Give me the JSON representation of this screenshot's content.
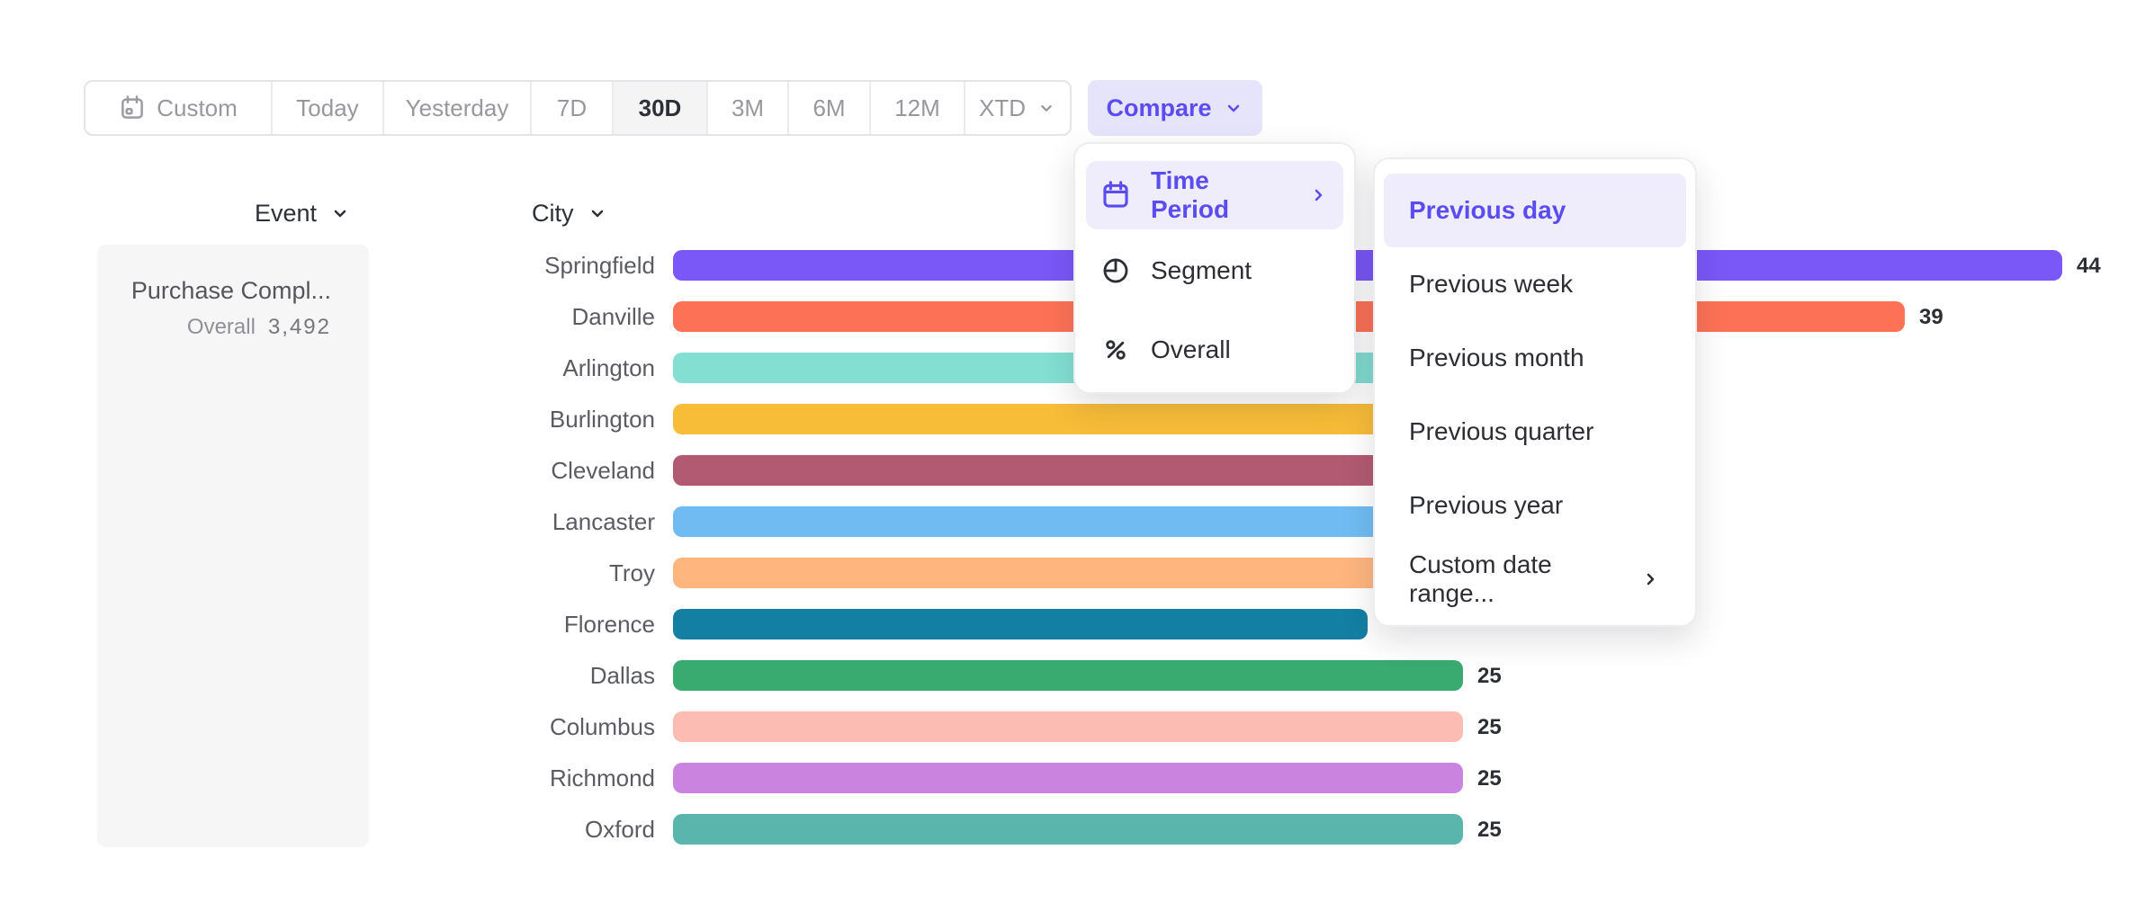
{
  "toolbar": {
    "buttons": [
      {
        "label": "Custom",
        "icon": "calendar-icon",
        "selected": false
      },
      {
        "label": "Today",
        "selected": false
      },
      {
        "label": "Yesterday",
        "selected": false
      },
      {
        "label": "7D",
        "selected": false
      },
      {
        "label": "30D",
        "selected": true
      },
      {
        "label": "3M",
        "selected": false
      },
      {
        "label": "6M",
        "selected": false
      },
      {
        "label": "12M",
        "selected": false
      },
      {
        "label": "XTD",
        "chevron": true,
        "selected": false
      }
    ],
    "compare_label": "Compare"
  },
  "columns": {
    "event_label": "Event",
    "city_label": "City"
  },
  "event_panel": {
    "name": "Purchase Compl...",
    "overall_label": "Overall",
    "overall_value": "3,492"
  },
  "chart_data": {
    "type": "bar",
    "orientation": "horizontal",
    "group_by": "City",
    "xlim": [
      0,
      44
    ],
    "categories": [
      "Springfield",
      "Danville",
      "Arlington",
      "Burlington",
      "Cleveland",
      "Lancaster",
      "Troy",
      "Florence",
      "Dallas",
      "Columbus",
      "Richmond",
      "Oxford"
    ],
    "values": [
      44,
      39,
      30,
      30,
      29,
      28,
      27,
      22,
      25,
      25,
      25,
      25
    ],
    "value_labels": [
      "44",
      "39",
      "",
      "",
      "",
      "",
      "",
      "",
      "25",
      "25",
      "25",
      "25"
    ],
    "bar_colors": [
      "#7a57f7",
      "#fd7256",
      "#83dfd2",
      "#f7bc38",
      "#b25a72",
      "#70bcf2",
      "#feb57e",
      "#137fa3",
      "#39aa70",
      "#fcbcb4",
      "#ca84e0",
      "#5ab6ad"
    ],
    "note_visible_labels_only": "bars 3-8 end underneath the open dropdown menus"
  },
  "compare_menu": {
    "items": [
      {
        "label": "Time Period",
        "icon": "calendar-lines-icon",
        "highlighted": true,
        "has_submenu": true
      },
      {
        "label": "Segment",
        "icon": "segment-icon",
        "highlighted": false,
        "has_submenu": false
      },
      {
        "label": "Overall",
        "icon": "percent-icon",
        "highlighted": false,
        "has_submenu": false
      }
    ]
  },
  "time_period_submenu": {
    "items": [
      {
        "label": "Previous day",
        "highlighted": true,
        "has_submenu": false
      },
      {
        "label": "Previous week",
        "highlighted": false,
        "has_submenu": false
      },
      {
        "label": "Previous month",
        "highlighted": false,
        "has_submenu": false
      },
      {
        "label": "Previous quarter",
        "highlighted": false,
        "has_submenu": false
      },
      {
        "label": "Previous year",
        "highlighted": false,
        "has_submenu": false
      },
      {
        "label": "Custom date range...",
        "highlighted": false,
        "has_submenu": true
      }
    ]
  },
  "colors": {
    "accent": "#5a4cee",
    "accent_highlight_bg": "#efedfc",
    "compare_button_bg": "#e6e4fa",
    "toolbar_selected_bg": "#f4f4f5",
    "toolbar_text": "#97989f",
    "dark_text": "#2e3038",
    "row_label_text": "#5b5c63",
    "event_panel_bg": "#f6f6f7"
  }
}
